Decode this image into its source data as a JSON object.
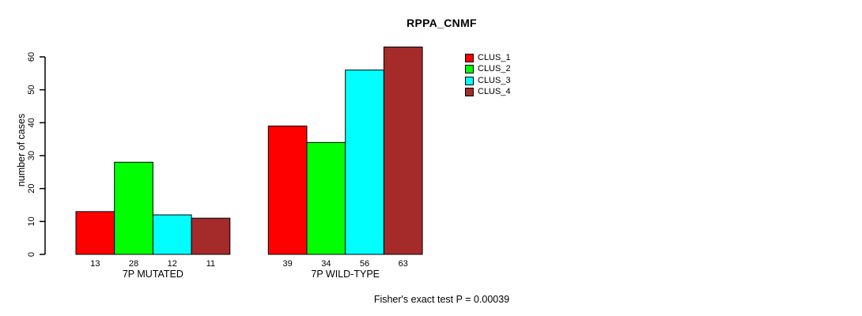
{
  "chart_data": {
    "type": "bar",
    "title": "RPPA_CNMF",
    "ylabel": "number of cases",
    "xlabel": "",
    "ylim": [
      0,
      60
    ],
    "yticks": [
      0,
      10,
      20,
      30,
      40,
      50,
      60
    ],
    "categories": [
      "7P MUTATED",
      "7P WILD-TYPE"
    ],
    "series": [
      {
        "name": "CLUS_1",
        "color": "#ff0000",
        "values": [
          13,
          39
        ]
      },
      {
        "name": "CLUS_2",
        "color": "#00ff00",
        "values": [
          28,
          34
        ]
      },
      {
        "name": "CLUS_3",
        "color": "#00ffff",
        "values": [
          12,
          56
        ]
      },
      {
        "name": "CLUS_4",
        "color": "#a52a2a",
        "values": [
          11,
          63
        ]
      }
    ],
    "show_bar_values": true,
    "grid": false,
    "legend_position": "top-right",
    "axis_color": "#000000",
    "background": "#ffffff",
    "footer": "Fisher's exact test P = 0.00039"
  }
}
